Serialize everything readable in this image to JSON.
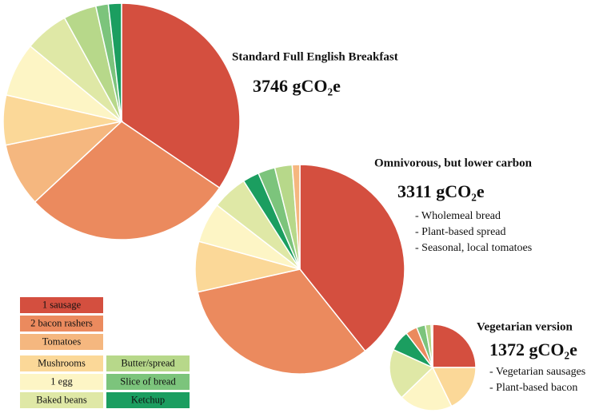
{
  "chart_data": [
    {
      "type": "pie",
      "title": "Standard Full English Breakfast",
      "total_label": "3746 gCO₂e",
      "notes": [],
      "categories": [
        "1 sausage",
        "2 bacon rashers",
        "Tomatoes",
        "Mushrooms",
        "1 egg",
        "Baked beans",
        "Butter/spread",
        "Slice of bread",
        "Ketchup"
      ],
      "values": [
        1292,
        1071,
        326,
        255,
        277,
        225,
        169,
        64,
        67
      ],
      "colors": [
        "#d44f3f",
        "#eb8a5e",
        "#f5b77f",
        "#fbd898",
        "#fdf5c5",
        "#dfe8a6",
        "#b7d88a",
        "#7cc47c",
        "#1b9e60"
      ]
    },
    {
      "type": "pie",
      "title": "Omnivorous, but lower carbon",
      "total_label": "3311 gCO₂e",
      "notes": [
        "- Wholemeal bread",
        "- Plant-based spread",
        "- Seasonal, local tomatoes"
      ],
      "categories": [
        "1 sausage",
        "2 bacon rashers",
        "Mushrooms",
        "1 egg",
        "Baked beans",
        "Ketchup",
        "Slice of bread",
        "Butter/spread",
        "Tomatoes"
      ],
      "values": [
        1301,
        1066,
        258,
        205,
        182,
        84,
        87,
        89,
        39
      ],
      "colors": [
        "#d44f3f",
        "#eb8a5e",
        "#fbd898",
        "#fdf5c5",
        "#dfe8a6",
        "#1b9e60",
        "#7cc47c",
        "#b7d88a",
        "#f5b77f"
      ]
    },
    {
      "type": "pie",
      "title": "Vegetarian version",
      "total_label": "1372 gCO₂e",
      "notes": [
        "- Vegetarian sausages",
        "- Plant-based bacon"
      ],
      "categories": [
        "1 sausage",
        "Mushrooms",
        "1 egg",
        "Baked beans",
        "Ketchup",
        "2 bacon rashers",
        "Slice of bread",
        "Butter/spread",
        "Tomatoes"
      ],
      "values": [
        343,
        244,
        274,
        261,
        107,
        60,
        45,
        30,
        8
      ],
      "colors": [
        "#d44f3f",
        "#fbd898",
        "#fdf5c5",
        "#dfe8a6",
        "#1b9e60",
        "#eb8a5e",
        "#7cc47c",
        "#b7d88a",
        "#f5b77f"
      ]
    }
  ],
  "legend": [
    {
      "name": "1 sausage",
      "color": "#d44f3f"
    },
    {
      "name": "2 bacon rashers",
      "color": "#eb8a5e"
    },
    {
      "name": "Tomatoes",
      "color": "#f5b77f"
    },
    {
      "name": "Mushrooms",
      "color": "#fbd898"
    },
    {
      "name": "1 egg",
      "color": "#fdf5c5"
    },
    {
      "name": "Baked beans",
      "color": "#dfe8a6"
    },
    {
      "name": "Butter/spread",
      "color": "#b7d88a"
    },
    {
      "name": "Slice of bread",
      "color": "#7cc47c"
    },
    {
      "name": "Ketchup",
      "color": "#1b9e60"
    }
  ]
}
